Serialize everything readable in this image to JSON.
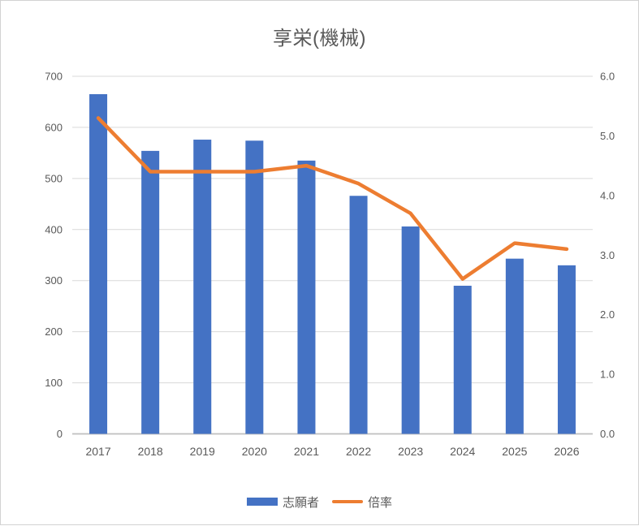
{
  "chart_data": {
    "type": "combo",
    "title": "享栄(機械)",
    "categories": [
      "2017",
      "2018",
      "2019",
      "2020",
      "2021",
      "2022",
      "2023",
      "2024",
      "2025",
      "2026"
    ],
    "series": [
      {
        "name": "志願者",
        "type": "bar",
        "axis": "left",
        "color": "#4472C4",
        "values": [
          665,
          554,
          576,
          574,
          535,
          466,
          406,
          290,
          343,
          330
        ]
      },
      {
        "name": "倍率",
        "type": "line",
        "axis": "right",
        "color": "#ED7D31",
        "values": [
          5.3,
          4.4,
          4.4,
          4.4,
          4.5,
          4.2,
          3.7,
          2.6,
          3.2,
          3.1
        ]
      }
    ],
    "left_axis": {
      "min": 0,
      "max": 700,
      "step": 100,
      "tick_labels": [
        "0",
        "100",
        "200",
        "300",
        "400",
        "500",
        "600",
        "700"
      ]
    },
    "right_axis": {
      "min": 0,
      "max": 6,
      "step": 1,
      "tick_labels": [
        "0.0",
        "1.0",
        "2.0",
        "3.0",
        "4.0",
        "5.0",
        "6.0"
      ]
    },
    "grid": true,
    "legend_position": "bottom",
    "legend": [
      {
        "label": "志願者",
        "swatch": "bar",
        "color": "#4472C4"
      },
      {
        "label": "倍率",
        "swatch": "line",
        "color": "#ED7D31"
      }
    ]
  },
  "style_colors": {
    "text": "#595959",
    "grid": "#D9D9D9",
    "axis_line": "#BFBFBF",
    "border": "#D2D2D2",
    "background": "#FFFFFF"
  }
}
